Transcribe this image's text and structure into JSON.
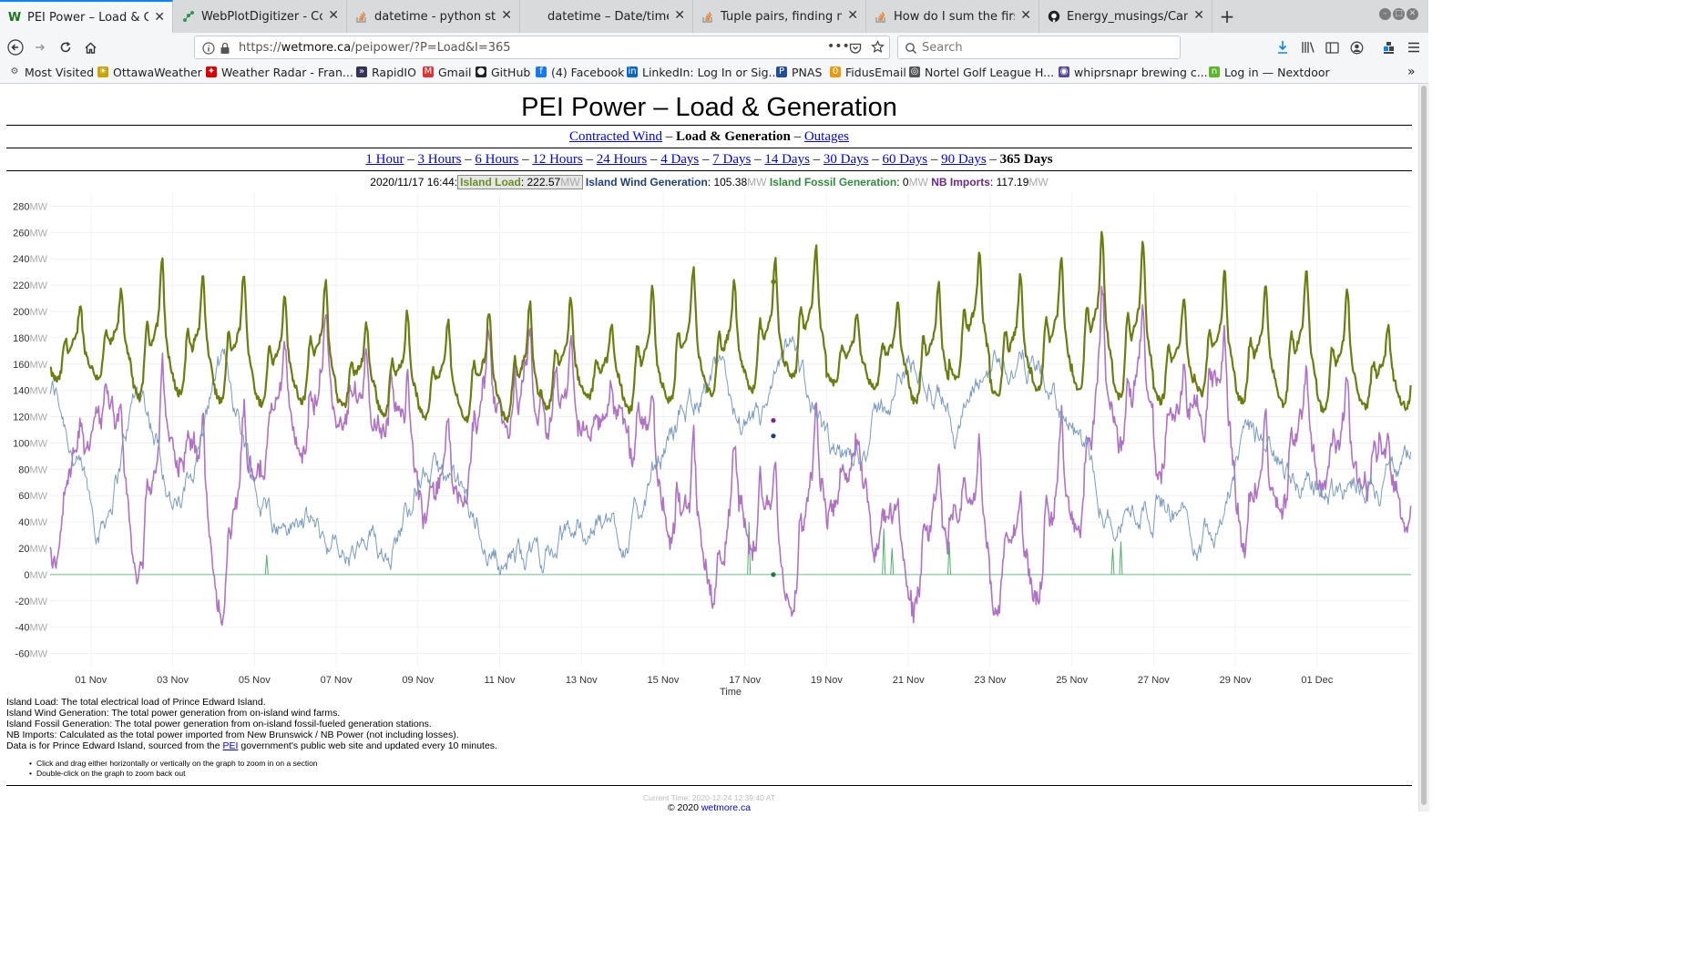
{
  "browser": {
    "tabs": [
      {
        "label": "PEI Power – Load & Gene",
        "icon": "w-favicon",
        "active": true
      },
      {
        "label": "WebPlotDigitizer - Copyr",
        "icon": "wpd-favicon"
      },
      {
        "label": "datetime - python strftim",
        "icon": "stackoverflow-favicon"
      },
      {
        "label": "datetime – Date/time value",
        "icon": "none"
      },
      {
        "label": "Tuple pairs, finding minim",
        "icon": "stackoverflow-favicon"
      },
      {
        "label": "How do I sum the first va",
        "icon": "stackoverflow-favicon"
      },
      {
        "label": "Energy_musings/Canada",
        "icon": "github-favicon"
      }
    ],
    "url_prefix": "https://",
    "url_host": "wetmore.ca",
    "url_path": "/peipower/?P=Load&I=365",
    "search_placeholder": "Search",
    "bookmarks": [
      "Most Visited",
      "OttawaWeather",
      "Weather Radar - Fran...",
      "RapidIO",
      "Gmail",
      "GitHub",
      "(4) Facebook",
      "LinkedIn: Log In or Sig...",
      "PNAS",
      "FidusEmail",
      "Nortel Golf League H...",
      "whiprsnapr brewing c...",
      "Log in — Nextdoor"
    ]
  },
  "page": {
    "title": "PEI Power – Load & Generation",
    "nav1": {
      "contracted_wind": "Contracted Wind",
      "sep": " – ",
      "current": "Load & Generation",
      "outages": "Outages"
    },
    "ranges": [
      "1 Hour",
      "3 Hours",
      "6 Hours",
      "12 Hours",
      "24 Hours",
      "4 Days",
      "7 Days",
      "14 Days",
      "30 Days",
      "60 Days",
      "90 Days"
    ],
    "current_range": "365 Days",
    "readout": {
      "timestamp": "2020/11/17 16:44:",
      "load_label": "Island Load",
      "load_value": "222.57",
      "wind_label": "Island Wind Generation",
      "wind_value": "105.38",
      "fossil_label": "Island Fossil Generation",
      "fossil_value": "0",
      "nb_label": "NB Imports",
      "nb_value": "117.19",
      "unit": "MW"
    },
    "notes": [
      "Island Load: The total electrical load of Prince Edward Island.",
      "Island Wind Generation: The total power generation from on-island wind farms.",
      "Island Fossil Generation: The total power generation from on-island fossil-fueled generation stations.",
      "NB Imports: Calculated as the total power imported from New Brunswick / NB Power (not including losses)."
    ],
    "data_note_pre": "Data is for Prince Edward Island, sourced from the ",
    "data_note_link": "PEI",
    "data_note_post": " government's public web site and updated every 10 minutes.",
    "tips": [
      "Click and drag either horizontally or vertically on the graph to zoom in on a section",
      "Double-click on the graph to zoom back out"
    ],
    "current_time": "Current Time: 2020-12-24 12:39:40 AT",
    "copyright_pre": "© 2020 ",
    "copyright_link": "wetmore.ca"
  },
  "chart_data": {
    "type": "line",
    "xlabel": "Time",
    "ylabel": "",
    "y_unit": "MW",
    "ylim": [
      -70,
      290
    ],
    "yticks": [
      280,
      260,
      240,
      220,
      200,
      180,
      160,
      140,
      120,
      100,
      80,
      60,
      40,
      20,
      0,
      -20,
      -40,
      -60
    ],
    "xticks": [
      "01 Nov",
      "03 Nov",
      "05 Nov",
      "07 Nov",
      "09 Nov",
      "11 Nov",
      "13 Nov",
      "15 Nov",
      "17 Nov",
      "19 Nov",
      "21 Nov",
      "23 Nov",
      "25 Nov",
      "27 Nov",
      "29 Nov",
      "01 Dec"
    ],
    "x_start": "2020-10-31",
    "x_end": "2020-12-03",
    "grid": true,
    "highlight": {
      "x": "2020-11-17 16:44",
      "load": 222.57,
      "wind": 105.38,
      "fossil": 0,
      "nb": 117.19
    },
    "series": [
      {
        "name": "Island Load",
        "color": "#6b7d10",
        "daily_peak": [
          205,
          215,
          238,
          225,
          228,
          212,
          222,
          190,
          198,
          192,
          200,
          205,
          210,
          188,
          218,
          232,
          222,
          238,
          248,
          198,
          205,
          222,
          245,
          228,
          240,
          258,
          252,
          210,
          228,
          220,
          232,
          215,
          190
        ],
        "daily_min": [
          148,
          150,
          135,
          138,
          132,
          130,
          132,
          128,
          122,
          120,
          118,
          118,
          128,
          135,
          125,
          132,
          138,
          140,
          150,
          145,
          142,
          132,
          150,
          135,
          140,
          140,
          135,
          132,
          138,
          132,
          130,
          125,
          128
        ]
      },
      {
        "name": "Island Wind Generation",
        "color": "#7a9cc0",
        "daily_level": [
          140,
          20,
          160,
          30,
          180,
          40,
          40,
          10,
          15,
          90,
          40,
          10,
          20,
          40,
          30,
          110,
          160,
          90,
          175,
          60,
          120,
          170,
          110,
          170,
          160,
          90,
          40,
          70,
          20,
          110,
          80,
          60,
          80
        ]
      },
      {
        "name": "Island Fossil Generation",
        "color": "#4caf6e",
        "spikes": [
          {
            "day": 5.3,
            "value": 15
          },
          {
            "day": 17.1,
            "value": 40
          },
          {
            "day": 20.4,
            "value": 35
          },
          {
            "day": 20.6,
            "value": 20
          },
          {
            "day": 22.0,
            "value": 25
          },
          {
            "day": 26.0,
            "value": 20
          },
          {
            "day": 26.2,
            "value": 25
          }
        ]
      },
      {
        "name": "NB Imports",
        "color": "#b072c4"
      }
    ]
  }
}
